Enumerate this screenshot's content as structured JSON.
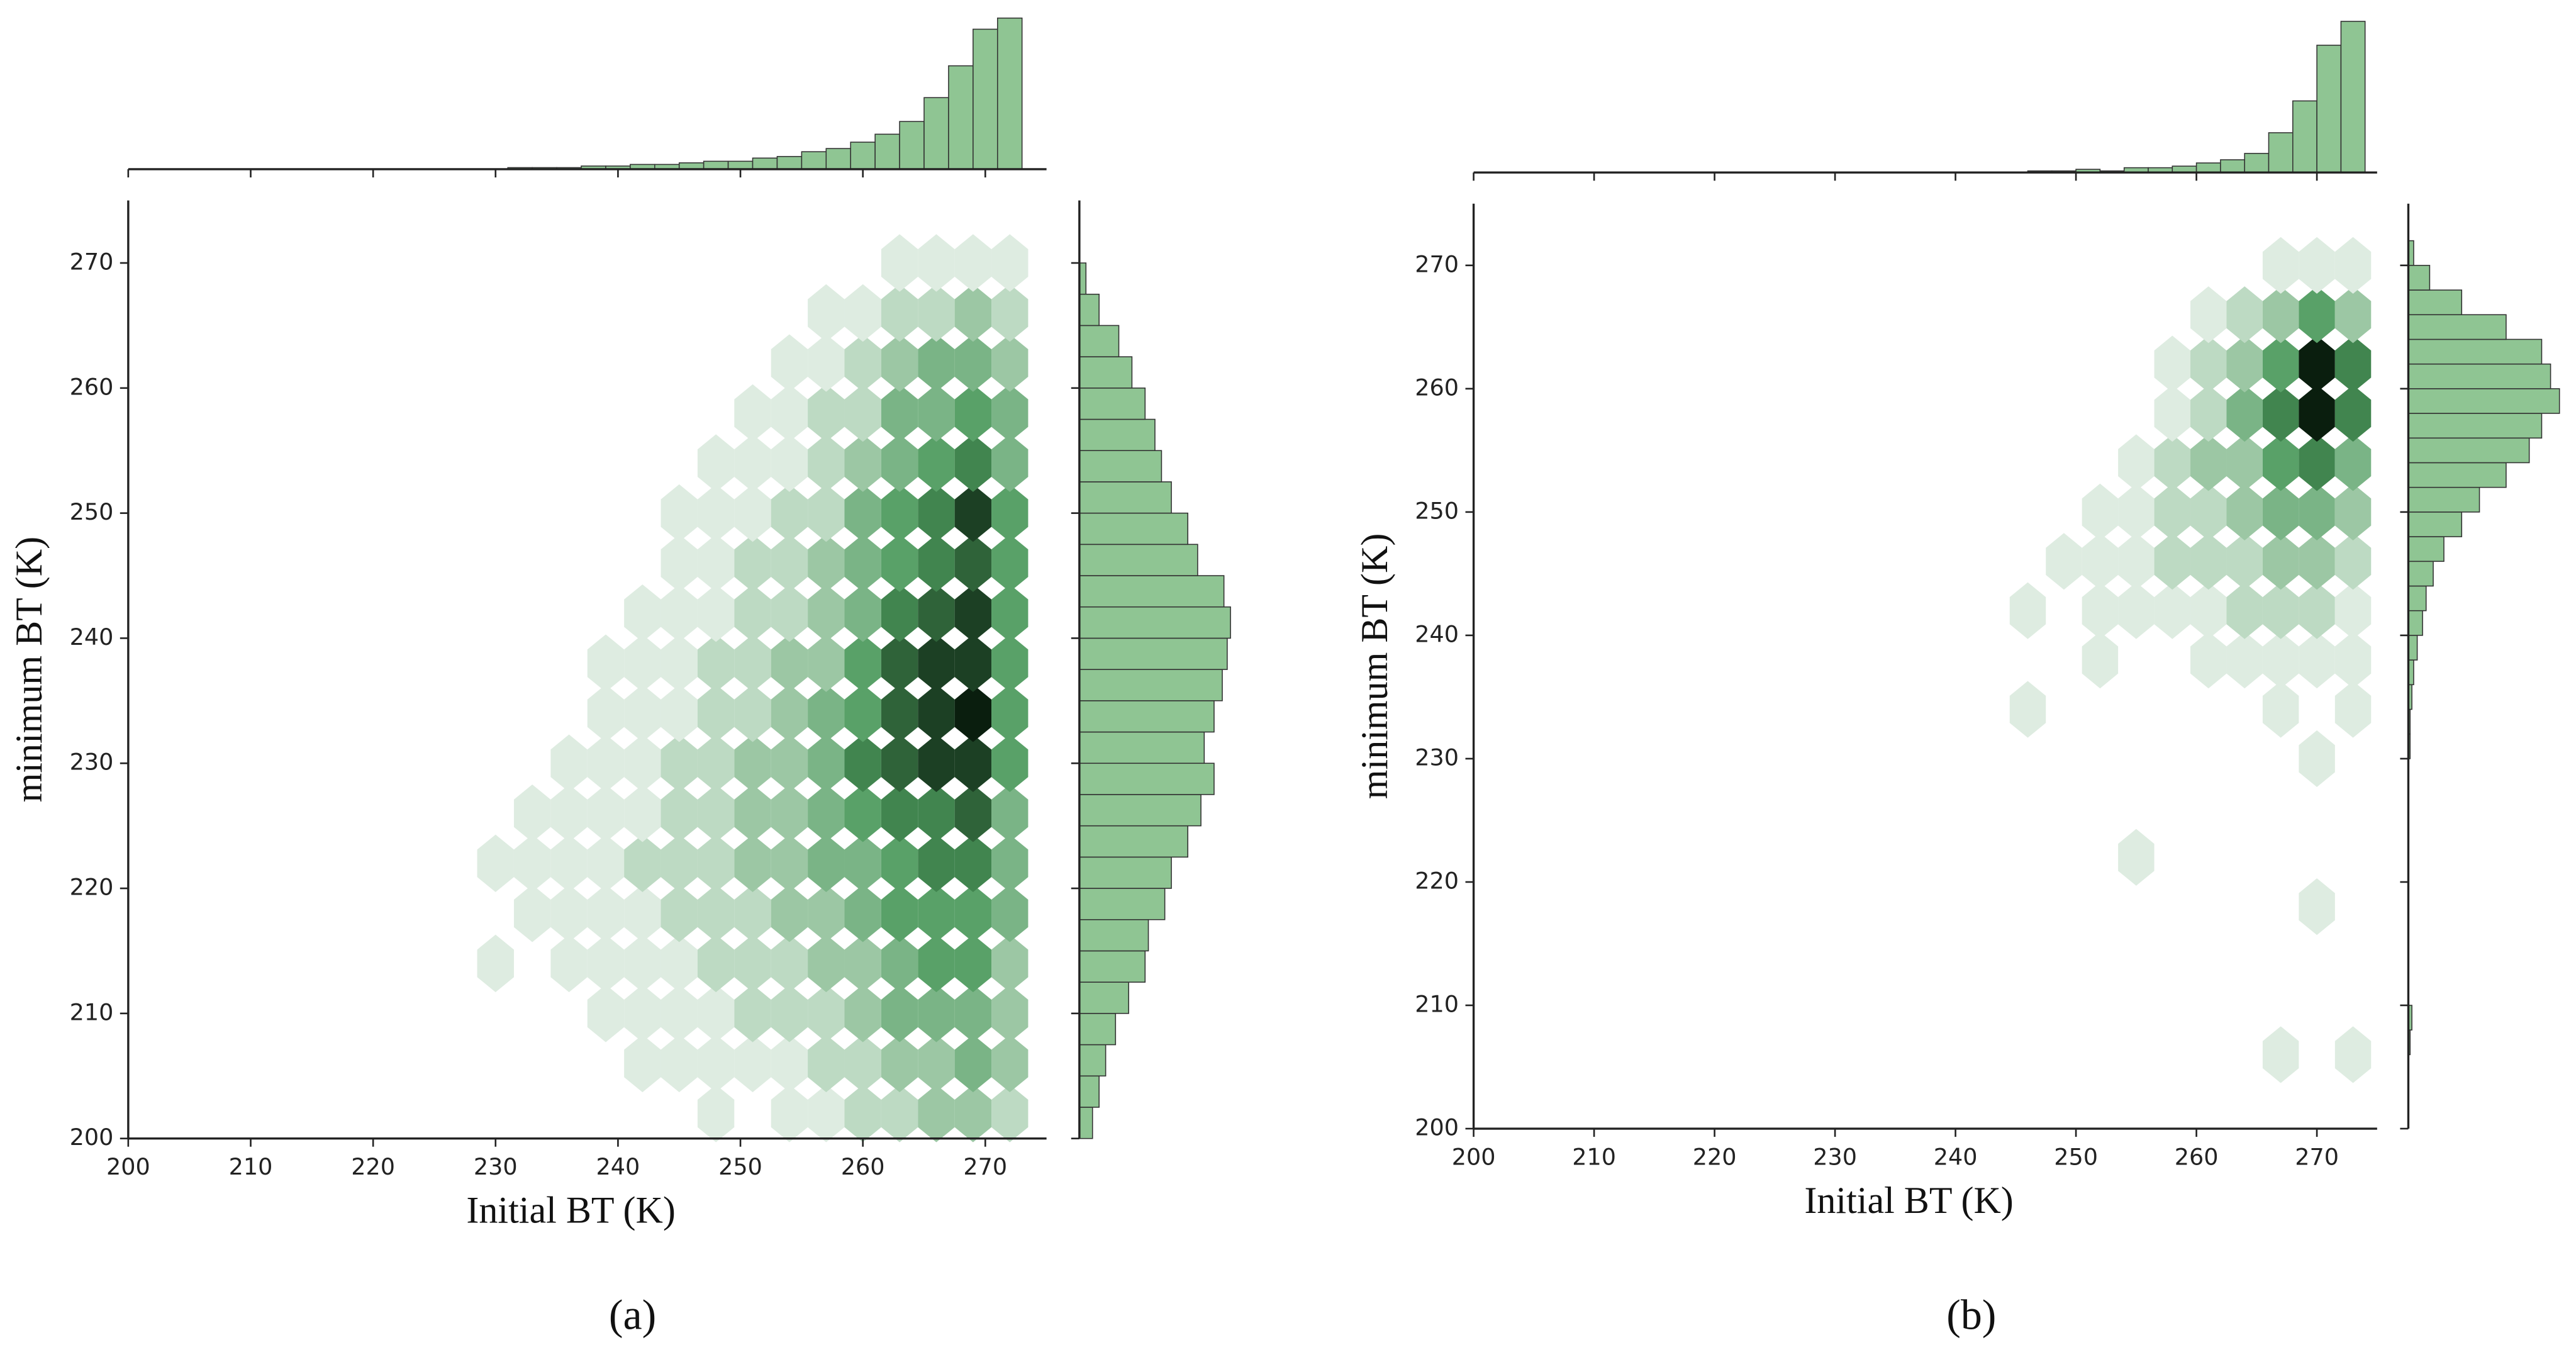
{
  "chart_data": [
    {
      "type": "hexbin",
      "panel_label": "(a)",
      "xlabel": "Initial BT (K)",
      "ylabel": "minimum BT (K)",
      "xlim": [
        200,
        275
      ],
      "ylim": [
        200,
        275
      ],
      "xticks": [
        200,
        210,
        220,
        230,
        240,
        250,
        260,
        270
      ],
      "yticks": [
        200,
        210,
        220,
        230,
        240,
        250,
        260,
        270
      ],
      "color": "#4c9a5c",
      "hist_color": "#8fc593",
      "hex_x": [
        230,
        233,
        236,
        239,
        242,
        245,
        248,
        251,
        254,
        257,
        260,
        263,
        266,
        269,
        272
      ],
      "hex_y": [
        202,
        206,
        210,
        214,
        218,
        222,
        226,
        230,
        234,
        238,
        242,
        246,
        250,
        254,
        258,
        262,
        266,
        270
      ],
      "hex_counts": [
        [
          0,
          0,
          0,
          0,
          0,
          0,
          1,
          0,
          1,
          1,
          2,
          2,
          3,
          3,
          2
        ],
        [
          0,
          0,
          0,
          0,
          1,
          1,
          1,
          1,
          1,
          2,
          2,
          3,
          3,
          4,
          3
        ],
        [
          0,
          0,
          0,
          1,
          1,
          1,
          1,
          2,
          2,
          2,
          3,
          4,
          4,
          4,
          3
        ],
        [
          1,
          0,
          1,
          1,
          1,
          1,
          2,
          2,
          2,
          3,
          3,
          4,
          5,
          5,
          3
        ],
        [
          0,
          1,
          1,
          1,
          1,
          2,
          2,
          2,
          3,
          3,
          4,
          5,
          5,
          5,
          4
        ],
        [
          1,
          1,
          1,
          1,
          2,
          2,
          2,
          3,
          3,
          4,
          4,
          5,
          6,
          6,
          4
        ],
        [
          0,
          1,
          1,
          1,
          1,
          2,
          2,
          3,
          3,
          4,
          5,
          6,
          6,
          7,
          4
        ],
        [
          0,
          0,
          1,
          1,
          1,
          2,
          2,
          3,
          3,
          4,
          6,
          7,
          8,
          8,
          5
        ],
        [
          0,
          0,
          0,
          1,
          1,
          1,
          2,
          2,
          3,
          4,
          5,
          7,
          8,
          9,
          5
        ],
        [
          0,
          0,
          0,
          1,
          1,
          1,
          2,
          2,
          3,
          3,
          5,
          7,
          8,
          8,
          5
        ],
        [
          0,
          0,
          0,
          0,
          1,
          1,
          1,
          2,
          2,
          3,
          4,
          6,
          7,
          8,
          5
        ],
        [
          0,
          0,
          0,
          0,
          0,
          1,
          1,
          2,
          2,
          3,
          4,
          5,
          6,
          7,
          5
        ],
        [
          0,
          0,
          0,
          0,
          0,
          1,
          1,
          1,
          2,
          2,
          4,
          5,
          6,
          8,
          5
        ],
        [
          0,
          0,
          0,
          0,
          0,
          0,
          1,
          1,
          1,
          2,
          3,
          4,
          5,
          6,
          4
        ],
        [
          0,
          0,
          0,
          0,
          0,
          0,
          0,
          1,
          1,
          2,
          2,
          4,
          4,
          5,
          4
        ],
        [
          0,
          0,
          0,
          0,
          0,
          0,
          0,
          0,
          1,
          1,
          2,
          3,
          4,
          4,
          3
        ],
        [
          0,
          0,
          0,
          0,
          0,
          0,
          0,
          0,
          0,
          1,
          1,
          2,
          2,
          3,
          2
        ],
        [
          0,
          0,
          0,
          0,
          0,
          0,
          0,
          0,
          0,
          0,
          0,
          1,
          1,
          1,
          1
        ]
      ],
      "x_hist": {
        "bins": [
          231,
          233,
          235,
          237,
          239,
          241,
          243,
          245,
          247,
          249,
          251,
          253,
          255,
          257,
          259,
          261,
          263,
          265,
          267,
          269,
          271,
          273
        ],
        "counts": [
          1,
          1,
          1,
          2,
          2,
          3,
          3,
          4,
          5,
          5,
          7,
          8,
          11,
          13,
          17,
          22,
          30,
          45,
          65,
          88,
          95
        ]
      },
      "y_hist": {
        "bins": [
          200,
          202.5,
          205,
          207.5,
          210,
          212.5,
          215,
          217.5,
          220,
          222.5,
          225,
          227.5,
          230,
          232.5,
          235,
          237.5,
          240,
          242.5,
          245,
          247.5,
          250,
          252.5,
          255,
          257.5,
          260,
          262.5,
          265,
          267.5,
          270
        ],
        "counts": [
          8,
          12,
          16,
          22,
          30,
          40,
          42,
          52,
          56,
          66,
          74,
          82,
          76,
          82,
          87,
          90,
          92,
          88,
          72,
          66,
          56,
          50,
          46,
          40,
          32,
          24,
          12,
          4
        ]
      }
    },
    {
      "type": "hexbin",
      "panel_label": "(b)",
      "xlabel": "Initial BT (K)",
      "ylabel": "minimum BT (K)",
      "xlim": [
        200,
        275
      ],
      "ylim": [
        200,
        275
      ],
      "xticks": [
        200,
        210,
        220,
        230,
        240,
        250,
        260,
        270
      ],
      "yticks": [
        200,
        210,
        220,
        230,
        240,
        250,
        260,
        270
      ],
      "color": "#4c9a5c",
      "hist_color": "#8fc593",
      "hex_x": [
        246,
        249,
        252,
        255,
        258,
        261,
        264,
        267,
        270,
        273
      ],
      "hex_y": [
        206,
        210,
        214,
        218,
        222,
        226,
        230,
        234,
        238,
        242,
        246,
        250,
        254,
        258,
        262,
        266,
        270
      ],
      "hex_counts": [
        [
          0,
          0,
          0,
          0,
          0,
          0,
          0,
          1,
          0,
          1
        ],
        [
          0,
          0,
          0,
          0,
          0,
          0,
          0,
          0,
          0,
          0
        ],
        [
          0,
          0,
          0,
          0,
          0,
          0,
          0,
          0,
          0,
          0
        ],
        [
          0,
          0,
          0,
          0,
          0,
          0,
          0,
          0,
          1,
          0
        ],
        [
          0,
          0,
          0,
          1,
          0,
          0,
          0,
          0,
          0,
          0
        ],
        [
          0,
          0,
          0,
          0,
          0,
          0,
          0,
          0,
          0,
          0
        ],
        [
          0,
          0,
          0,
          0,
          0,
          0,
          0,
          0,
          1,
          0
        ],
        [
          1,
          0,
          0,
          0,
          0,
          0,
          0,
          1,
          0,
          1
        ],
        [
          0,
          0,
          1,
          0,
          0,
          1,
          1,
          1,
          1,
          1
        ],
        [
          1,
          0,
          1,
          1,
          1,
          1,
          2,
          2,
          2,
          1
        ],
        [
          0,
          1,
          1,
          1,
          2,
          2,
          2,
          3,
          3,
          2
        ],
        [
          0,
          0,
          1,
          1,
          2,
          2,
          3,
          4,
          4,
          3
        ],
        [
          0,
          0,
          0,
          1,
          2,
          3,
          3,
          5,
          6,
          4
        ],
        [
          0,
          0,
          0,
          0,
          1,
          2,
          4,
          6,
          9,
          6
        ],
        [
          0,
          0,
          0,
          0,
          1,
          2,
          3,
          5,
          9,
          6
        ],
        [
          0,
          0,
          0,
          0,
          0,
          1,
          2,
          3,
          5,
          3
        ],
        [
          0,
          0,
          0,
          0,
          0,
          0,
          0,
          1,
          1,
          1
        ]
      ],
      "x_hist": {
        "bins": [
          246,
          248,
          250,
          252,
          254,
          256,
          258,
          260,
          262,
          264,
          266,
          268,
          270,
          272,
          274
        ],
        "counts": [
          1,
          1,
          2,
          1,
          3,
          3,
          4,
          6,
          8,
          12,
          25,
          45,
          80,
          95
        ]
      },
      "y_hist": {
        "bins": [
          206,
          208,
          210,
          212,
          214,
          216,
          218,
          220,
          222,
          224,
          226,
          228,
          230,
          232,
          234,
          236,
          238,
          240,
          242,
          244,
          246,
          248,
          250,
          252,
          254,
          256,
          258,
          260,
          262,
          264,
          266,
          268,
          270,
          272
        ],
        "counts": [
          1,
          2,
          0,
          0,
          0,
          0,
          0,
          0,
          0,
          0,
          0,
          0,
          1,
          1,
          2,
          3,
          5,
          8,
          10,
          14,
          20,
          30,
          40,
          55,
          68,
          75,
          85,
          80,
          75,
          55,
          30,
          12,
          3
        ]
      }
    }
  ]
}
